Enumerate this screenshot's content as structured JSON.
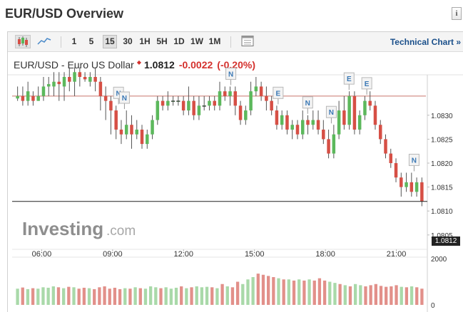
{
  "page": {
    "title": "EUR/USD Overview",
    "info_icon": "info-icon"
  },
  "toolbar": {
    "candles_icon": "candlestick-chart-icon",
    "line_icon": "line-chart-icon",
    "timeframes": [
      "1",
      "5",
      "15",
      "30",
      "1H",
      "5H",
      "1D",
      "1W",
      "1M"
    ],
    "active_timeframe": "15",
    "calendar_icon": "calendar-icon",
    "technical_chart_label": "Technical Chart »"
  },
  "quote": {
    "name": "EUR/USD - Euro US Dollar",
    "price": "1.0812",
    "change": "-0.0022",
    "change_pct": "(-0.20%)"
  },
  "watermark": {
    "brand": "Investing",
    "suffix": ".com"
  },
  "colors": {
    "up": "#5cb85c",
    "down": "#d64f45",
    "up_volume": "#a9d9a9",
    "down_volume": "#e2908a",
    "ref_line": "#c9746b",
    "negative": "#d4312d",
    "link": "#1a4f8a"
  },
  "chart_data": {
    "type": "candlestick",
    "x_tick_labels": [
      "06:00",
      "09:00",
      "12:00",
      "15:00",
      "18:00",
      "21:00"
    ],
    "y_tick_labels": [
      "1.0830",
      "1.0825",
      "1.0820",
      "1.0815",
      "1.0810",
      "1.0805"
    ],
    "y_range": [
      1.0802,
      1.0838
    ],
    "current_price_label": "1.0812",
    "current_price": 1.0812,
    "reference_price": 1.0834,
    "volume_tick_labels": [
      "2000",
      "0"
    ],
    "volume_range": [
      0,
      2000
    ],
    "event_markers": [
      {
        "label": "N",
        "time": "09:15"
      },
      {
        "label": "N",
        "time": "09:30"
      },
      {
        "label": "N",
        "time": "14:00"
      },
      {
        "label": "E",
        "time": "16:00"
      },
      {
        "label": "N",
        "time": "17:15"
      },
      {
        "label": "N",
        "time": "18:15"
      },
      {
        "label": "E",
        "time": "19:00"
      },
      {
        "label": "E",
        "time": "19:45"
      },
      {
        "label": "N",
        "time": "21:45"
      }
    ],
    "candles": [
      [
        1.08335,
        1.0834,
        1.0836,
        1.0833
      ],
      [
        1.0834,
        1.0833,
        1.0836,
        1.0832
      ],
      [
        1.0833,
        1.0835,
        1.0837,
        1.0832
      ],
      [
        1.0834,
        1.0833,
        1.0835,
        1.0832
      ],
      [
        1.0833,
        1.0834,
        1.0836,
        1.0833
      ],
      [
        1.0834,
        1.0836,
        1.0838,
        1.0833
      ],
      [
        1.0836,
        1.08365,
        1.0838,
        1.0834
      ],
      [
        1.0836,
        1.0837,
        1.0839,
        1.0834
      ],
      [
        1.0837,
        1.08365,
        1.0839,
        1.0833
      ],
      [
        1.0836,
        1.0838,
        1.0839,
        1.0833
      ],
      [
        1.0838,
        1.0837,
        1.084,
        1.0835
      ],
      [
        1.0837,
        1.0839,
        1.084,
        1.0834
      ],
      [
        1.0839,
        1.0838,
        1.084,
        1.0836
      ],
      [
        1.0838,
        1.08375,
        1.0839,
        1.0837
      ],
      [
        1.0837,
        1.0838,
        1.0839,
        1.0836
      ],
      [
        1.0838,
        1.0837,
        1.084,
        1.0835
      ],
      [
        1.0837,
        1.0834,
        1.0838,
        1.0831
      ],
      [
        1.0834,
        1.0833,
        1.0836,
        1.0829
      ],
      [
        1.0833,
        1.0831,
        1.0834,
        1.0826
      ],
      [
        1.0831,
        1.0827,
        1.0832,
        1.0825
      ],
      [
        1.0827,
        1.0826,
        1.0829,
        1.0824
      ],
      [
        1.0826,
        1.0828,
        1.0831,
        1.0825
      ],
      [
        1.0828,
        1.0826,
        1.083,
        1.0823
      ],
      [
        1.0826,
        1.0827,
        1.0829,
        1.0825
      ],
      [
        1.0827,
        1.0824,
        1.0828,
        1.0823
      ],
      [
        1.0824,
        1.0826,
        1.0827,
        1.0823
      ],
      [
        1.0826,
        1.0829,
        1.083,
        1.0825
      ],
      [
        1.0829,
        1.0833,
        1.0834,
        1.0828
      ],
      [
        1.0833,
        1.0832,
        1.0834,
        1.0831
      ],
      [
        1.0832,
        1.0833,
        1.0835,
        1.0831
      ],
      [
        1.0833,
        1.0833,
        1.0834,
        1.0832
      ],
      [
        1.0833,
        1.0833,
        1.0834,
        1.0832
      ],
      [
        1.0833,
        1.0831,
        1.0834,
        1.083
      ],
      [
        1.0831,
        1.0833,
        1.0836,
        1.083
      ],
      [
        1.0833,
        1.083,
        1.0834,
        1.0829
      ],
      [
        1.083,
        1.0832,
        1.0834,
        1.0829
      ],
      [
        1.0832,
        1.0832,
        1.0834,
        1.0831
      ],
      [
        1.0832,
        1.0833,
        1.0834,
        1.0831
      ],
      [
        1.0833,
        1.0832,
        1.0834,
        1.0831
      ],
      [
        1.0832,
        1.0835,
        1.0837,
        1.0831
      ],
      [
        1.0835,
        1.0834,
        1.0836,
        1.0833
      ],
      [
        1.0834,
        1.0835,
        1.0836,
        1.0832
      ],
      [
        1.0835,
        1.0832,
        1.0836,
        1.083
      ],
      [
        1.0832,
        1.0829,
        1.0833,
        1.0828
      ],
      [
        1.0829,
        1.0831,
        1.0832,
        1.0828
      ],
      [
        1.0831,
        1.0835,
        1.0837,
        1.083
      ],
      [
        1.0835,
        1.0836,
        1.0838,
        1.0834
      ],
      [
        1.0836,
        1.0834,
        1.0837,
        1.0833
      ],
      [
        1.0834,
        1.0833,
        1.0836,
        1.0831
      ],
      [
        1.0833,
        1.0831,
        1.0834,
        1.083
      ],
      [
        1.0831,
        1.0828,
        1.0832,
        1.0827
      ],
      [
        1.0828,
        1.083,
        1.0831,
        1.0827
      ],
      [
        1.083,
        1.0827,
        1.0831,
        1.0826
      ],
      [
        1.0827,
        1.0828,
        1.0829,
        1.0825
      ],
      [
        1.0828,
        1.0826,
        1.0829,
        1.0825
      ],
      [
        1.0826,
        1.0829,
        1.0831,
        1.0825
      ],
      [
        1.0829,
        1.0828,
        1.083,
        1.0826
      ],
      [
        1.0828,
        1.0829,
        1.0831,
        1.0827
      ],
      [
        1.0829,
        1.0827,
        1.0831,
        1.0826
      ],
      [
        1.0827,
        1.0825,
        1.0829,
        1.0824
      ],
      [
        1.0825,
        1.0822,
        1.0827,
        1.0821
      ],
      [
        1.0822,
        1.0826,
        1.0828,
        1.0821
      ],
      [
        1.0826,
        1.0831,
        1.0833,
        1.0825
      ],
      [
        1.0831,
        1.0828,
        1.0834,
        1.0827
      ],
      [
        1.0828,
        1.0834,
        1.0835,
        1.0827
      ],
      [
        1.0834,
        1.0827,
        1.0835,
        1.0826
      ],
      [
        1.0827,
        1.083,
        1.0831,
        1.0826
      ],
      [
        1.083,
        1.0833,
        1.0834,
        1.0829
      ],
      [
        1.0833,
        1.0832,
        1.0835,
        1.0831
      ],
      [
        1.0832,
        1.0828,
        1.0833,
        1.0827
      ],
      [
        1.0828,
        1.0825,
        1.0829,
        1.0824
      ],
      [
        1.0825,
        1.0822,
        1.0826,
        1.0821
      ],
      [
        1.0822,
        1.082,
        1.0823,
        1.0819
      ],
      [
        1.082,
        1.0817,
        1.0821,
        1.0816
      ],
      [
        1.0817,
        1.0815,
        1.0818,
        1.0813
      ],
      [
        1.0815,
        1.0816,
        1.0818,
        1.0814
      ],
      [
        1.0816,
        1.0814,
        1.0818,
        1.0813
      ],
      [
        1.0814,
        1.0816,
        1.0817,
        1.0813
      ],
      [
        1.0816,
        1.0812,
        1.0817,
        1.0811
      ]
    ],
    "volumes": [
      700,
      750,
      680,
      720,
      700,
      760,
      740,
      800,
      760,
      720,
      780,
      760,
      700,
      740,
      720,
      680,
      760,
      800,
      700,
      740,
      680,
      720,
      700,
      760,
      720,
      700,
      800,
      760,
      720,
      760,
      700,
      740,
      800,
      720,
      760,
      800,
      760,
      780,
      760,
      720,
      900,
      800,
      760,
      1000,
      900,
      1100,
      1200,
      1350,
      1300,
      1250,
      1200,
      1150,
      1100,
      1100,
      1050,
      1100,
      1050,
      1100,
      1050,
      1150,
      1050,
      1000,
      950,
      900,
      850,
      800,
      900,
      850,
      800,
      850,
      900,
      820,
      780,
      800,
      850,
      780,
      760,
      800,
      760,
      700
    ]
  }
}
